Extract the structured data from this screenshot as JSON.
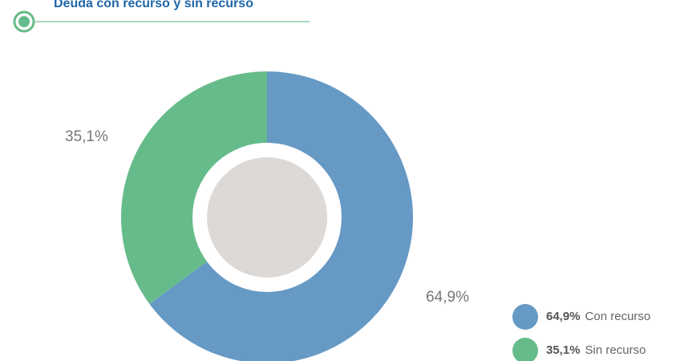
{
  "chart_data": {
    "type": "donut",
    "title": "Deuda con recurso y sin recurso",
    "categories": [
      "Con recurso",
      "Sin recurso"
    ],
    "values": [
      64.9,
      35.1
    ],
    "value_labels": [
      "64,9%",
      "35,1%"
    ],
    "colors": [
      "#6699c4",
      "#66bb8a"
    ]
  }
}
